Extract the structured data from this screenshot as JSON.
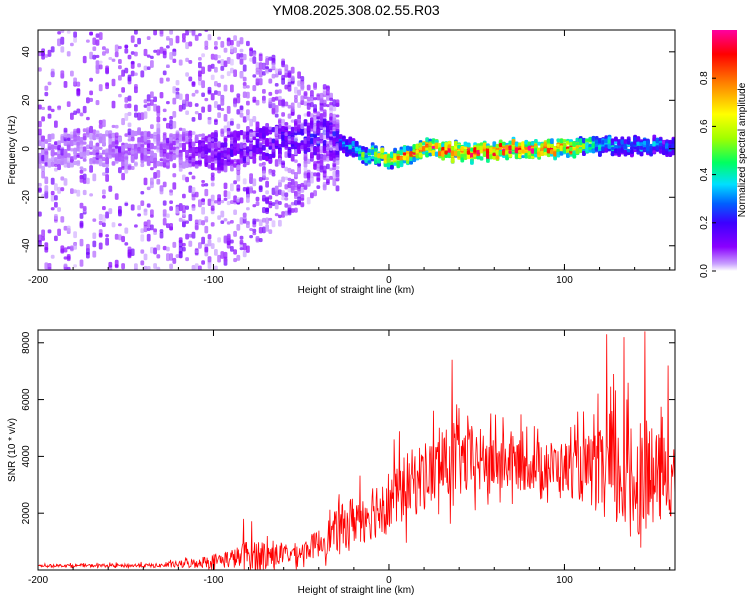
{
  "title": "YM08.2025.308.02.55.R03",
  "chart_data": [
    {
      "type": "heatmap",
      "name": "spectrogram",
      "xlabel": "Height of straight line (km)",
      "ylabel": "Frequency (Hz)",
      "xlim": [
        -200,
        163
      ],
      "ylim": [
        -50,
        49
      ],
      "xticks": [
        -200,
        -100,
        0,
        100
      ],
      "xtick_labels": [
        "-200",
        "-100",
        "0",
        "100"
      ],
      "yticks": [
        -40,
        -20,
        0,
        20,
        40
      ],
      "ytick_labels": [
        "-40",
        "-20",
        "0",
        "20",
        "40"
      ],
      "colorbar": {
        "label": "Normalized spectral amplitude",
        "range": [
          0,
          1
        ],
        "ticks": [
          0.0,
          0.2,
          0.4,
          0.6,
          0.8
        ],
        "tick_labels": [
          "0.0",
          "0.2",
          "0.4",
          "0.6",
          "0.8"
        ],
        "colors": [
          "#ffffff",
          "#8a00ff",
          "#3c00ff",
          "#0060ff",
          "#00e0ff",
          "#00ff60",
          "#a0ff00",
          "#ffff00",
          "#ff8000",
          "#ff0000",
          "#ff00a0"
        ]
      },
      "ridge_center_hz": {
        "x": [
          -200,
          -150,
          -100,
          -60,
          -40,
          -25,
          0,
          20,
          50,
          70,
          100,
          120,
          140,
          163
        ],
        "y": [
          -1,
          0,
          -1,
          3,
          6,
          0,
          -4,
          0,
          -2,
          0,
          0,
          2,
          1,
          0
        ]
      },
      "ridge_peak_amplitude": {
        "x": [
          -200,
          -120,
          -100,
          -60,
          -30,
          0,
          20,
          60,
          100,
          120,
          163
        ],
        "y": [
          0.05,
          0.08,
          0.15,
          0.2,
          0.25,
          0.75,
          0.9,
          0.95,
          0.9,
          0.4,
          0.3
        ]
      }
    },
    {
      "type": "line",
      "name": "snr",
      "xlabel": "Height of straight line (km)",
      "ylabel": "SNR (10 * v/v)",
      "xlim": [
        -200,
        163
      ],
      "ylim": [
        0,
        8450
      ],
      "xticks": [
        -200,
        -100,
        0,
        100
      ],
      "xtick_labels": [
        "-200",
        "-100",
        "0",
        "100"
      ],
      "yticks": [
        2000,
        4000,
        6000,
        8000
      ],
      "ytick_labels": [
        "2000",
        "4000",
        "6000",
        "8000"
      ],
      "color": "#ff0000",
      "envelope": {
        "x": [
          -200,
          -130,
          -115,
          -100,
          -85,
          -80,
          -60,
          -50,
          -40,
          -30,
          -20,
          -10,
          0,
          10,
          20,
          30,
          40,
          60,
          80,
          100,
          110,
          120,
          130,
          140,
          150,
          163
        ],
        "base": [
          150,
          150,
          200,
          300,
          400,
          450,
          500,
          600,
          900,
          1300,
          1700,
          2000,
          2300,
          2800,
          3200,
          3500,
          3700,
          3700,
          3600,
          3500,
          3400,
          3300,
          3000,
          2900,
          3000,
          3200
        ],
        "spread": [
          80,
          150,
          300,
          500,
          800,
          1400,
          700,
          700,
          1000,
          1500,
          1800,
          2100,
          2300,
          2400,
          2500,
          2600,
          2600,
          2200,
          1800,
          1900,
          2300,
          3000,
          3800,
          3800,
          3400,
          2800
        ]
      },
      "notable_peaks": {
        "x": [
          -83,
          36,
          40,
          124,
          128,
          134,
          146,
          159
        ],
        "y": [
          1800,
          7400,
          5700,
          8300,
          6900,
          8200,
          8400,
          7200
        ]
      }
    }
  ]
}
